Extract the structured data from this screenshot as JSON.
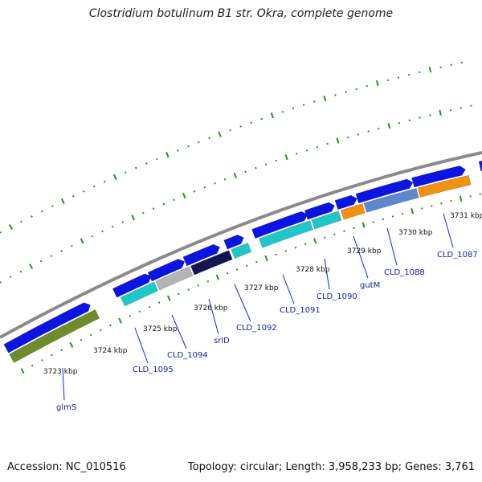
{
  "title": "Clostridium botulinum B1 str. Okra, complete genome",
  "accession": "Accession: NC_010516",
  "topology": "Topology: circular; Length: 3,958,233 bp; Genes: 3,761",
  "kbp_labels": [
    "3723 kbp",
    "3724 kbp",
    "3725 kbp",
    "3726 kbp",
    "3727 kbp",
    "3728 kbp",
    "3729 kbp",
    "3730 kbp",
    "3731 kbp"
  ],
  "gene_labels": [
    "glmS",
    "CLD_1095",
    "CLD_1094",
    "srlD",
    "CLD_1092",
    "CLD_1091",
    "CLD_1090",
    "gutM",
    "CLD_1088",
    "CLD_1087"
  ],
  "colors": {
    "backbone": "#8a8a8a",
    "cds": "#0a14e6",
    "cyan": "#1ec8c8",
    "gray": "#b4b4b4",
    "orange": "#f5900a",
    "steel": "#5a88c8",
    "olive": "#6e8c28",
    "navy": "#141450",
    "tick": "#2e8b2e",
    "label_line": "#1a1aff"
  }
}
